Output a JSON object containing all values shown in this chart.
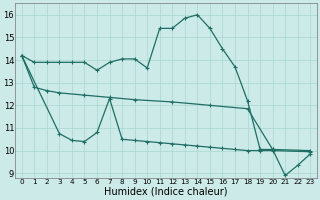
{
  "xlabel": "Humidex (Indice chaleur)",
  "bg_color": "#cceae7",
  "grid_color": "#aad6d0",
  "line_color": "#1e6e64",
  "xlim": [
    -0.5,
    23.5
  ],
  "ylim": [
    8.8,
    16.5
  ],
  "yticks": [
    9,
    10,
    11,
    12,
    13,
    14,
    15,
    16
  ],
  "xticks": [
    0,
    1,
    2,
    3,
    4,
    5,
    6,
    7,
    8,
    9,
    10,
    11,
    12,
    13,
    14,
    15,
    16,
    17,
    18,
    19,
    20,
    21,
    22,
    23
  ],
  "series1_x": [
    0,
    1,
    2,
    3,
    4,
    5,
    6,
    7,
    8,
    9,
    10,
    11,
    12,
    13,
    14,
    15,
    16,
    17,
    18,
    19,
    20,
    21,
    22,
    23
  ],
  "series1_y": [
    14.2,
    13.9,
    13.9,
    13.9,
    13.9,
    13.9,
    13.55,
    13.9,
    14.05,
    14.05,
    13.65,
    15.4,
    15.4,
    15.85,
    16.0,
    15.4,
    14.5,
    13.7,
    12.2,
    10.05,
    10.05,
    8.9,
    9.35,
    9.85
  ],
  "series2_x": [
    0,
    1,
    2,
    3,
    5,
    7,
    9,
    12,
    15,
    18,
    20,
    23
  ],
  "series2_y": [
    14.2,
    12.8,
    12.65,
    12.55,
    12.45,
    12.35,
    12.25,
    12.15,
    12.0,
    11.85,
    10.05,
    10.0
  ],
  "series3_x": [
    0,
    3,
    4,
    5,
    6,
    7,
    8,
    9,
    10,
    11,
    12,
    13,
    14,
    15,
    16,
    17,
    18,
    19,
    20,
    23
  ],
  "series3_y": [
    14.2,
    10.75,
    10.45,
    10.4,
    10.8,
    12.3,
    10.5,
    10.45,
    10.4,
    10.35,
    10.3,
    10.25,
    10.2,
    10.15,
    10.1,
    10.05,
    10.0,
    10.0,
    10.0,
    9.95
  ]
}
